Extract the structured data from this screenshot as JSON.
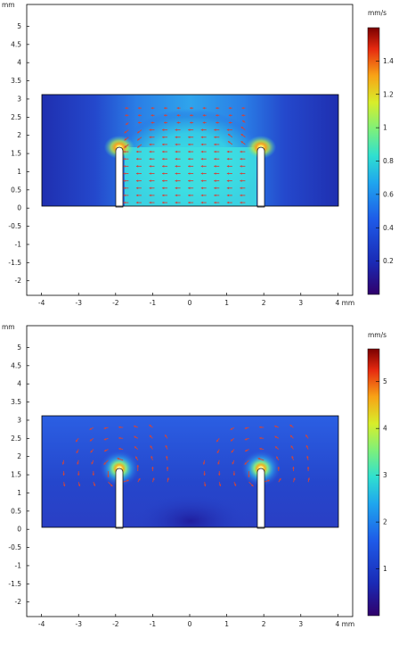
{
  "chart_data": [
    {
      "type": "heatmap",
      "title": "",
      "xlabel": "",
      "ylabel": "",
      "xunit": "mm",
      "yunit": "mm",
      "xlim": [
        -4.4,
        4.4
      ],
      "ylim": [
        -2.4,
        5.6
      ],
      "xticks": [
        -4,
        -3,
        -2,
        -1,
        0,
        1,
        2,
        3,
        4
      ],
      "xtick_labels": [
        "-4",
        "-3",
        "-2",
        "-1",
        "0",
        "1",
        "2",
        "3",
        "4 mm"
      ],
      "yticks": [
        -2,
        -1.5,
        -1,
        -0.5,
        0,
        0.5,
        1,
        1.5,
        2,
        2.5,
        3,
        3.5,
        4,
        4.5,
        5
      ],
      "ytick_labels": [
        "-2",
        "-1.5",
        "-1",
        "-0.5",
        "0",
        "0.5",
        "1",
        "1.5",
        "2",
        "2.5",
        "3",
        "3.5",
        "4",
        "4.5",
        "5"
      ],
      "colorbar": {
        "unit": "mm/s",
        "min": 0,
        "max": 1.6,
        "ticks": [
          0.2,
          0.4,
          0.6,
          0.8,
          1,
          1.2,
          1.4
        ],
        "tick_labels": [
          "0.2",
          "0.4",
          "0.6",
          "0.8",
          "1",
          "1.2",
          "1.4"
        ]
      },
      "domain_rect": {
        "x": [
          -4,
          4
        ],
        "y": [
          0,
          3
        ]
      },
      "slits": [
        {
          "x": [
            -2,
            -1.8
          ],
          "y_top": 1.6
        },
        {
          "x": [
            1.8,
            2
          ],
          "y_top": 1.6
        }
      ],
      "field_mode": "channel",
      "grid": false
    },
    {
      "type": "heatmap",
      "title": "",
      "xlabel": "",
      "ylabel": "",
      "xunit": "mm",
      "yunit": "mm",
      "xlim": [
        -4.4,
        4.4
      ],
      "ylim": [
        -2.4,
        5.6
      ],
      "xticks": [
        -4,
        -3,
        -2,
        -1,
        0,
        1,
        2,
        3,
        4
      ],
      "xtick_labels": [
        "-4",
        "-3",
        "-2",
        "-1",
        "0",
        "1",
        "2",
        "3",
        "4 mm"
      ],
      "yticks": [
        -2,
        -1.5,
        -1,
        -0.5,
        0,
        0.5,
        1,
        1.5,
        2,
        2.5,
        3,
        3.5,
        4,
        4.5,
        5
      ],
      "ytick_labels": [
        "-2",
        "-1.5",
        "-1",
        "-0.5",
        "0",
        "0.5",
        "1",
        "1.5",
        "2",
        "2.5",
        "3",
        "3.5",
        "4",
        "4.5",
        "5"
      ],
      "colorbar": {
        "unit": "mm/s",
        "min": 0,
        "max": 5.7,
        "ticks": [
          1,
          2,
          3,
          4,
          5
        ],
        "tick_labels": [
          "1",
          "2",
          "3",
          "4",
          "5"
        ]
      },
      "domain_rect": {
        "x": [
          -4,
          4
        ],
        "y": [
          0,
          3
        ]
      },
      "slits": [
        {
          "x": [
            -2,
            -1.8
          ],
          "y_top": 1.6
        },
        {
          "x": [
            1.8,
            2
          ],
          "y_top": 1.6
        }
      ],
      "field_mode": "tips",
      "grid": false
    }
  ]
}
